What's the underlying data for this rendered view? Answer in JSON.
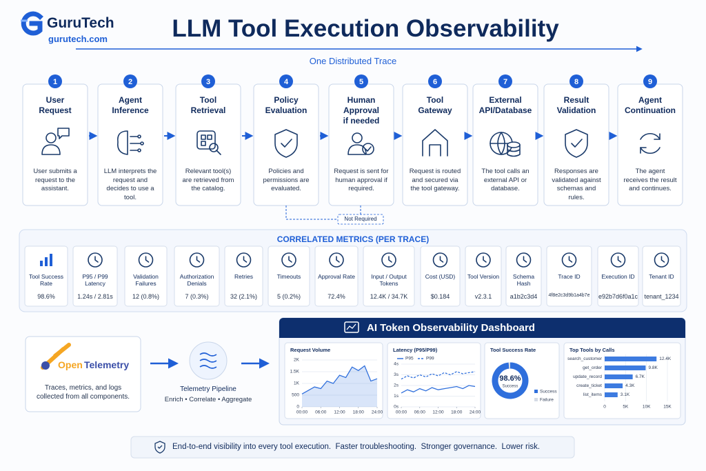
{
  "brand": {
    "name": "GuruTech",
    "url": "gurutech.com"
  },
  "title": "LLM Tool Execution Observability",
  "trace_label": "One Distributed Trace",
  "steps": [
    {
      "number": 1,
      "title": "User\nRequest",
      "description": "User submits a request to the assistant."
    },
    {
      "number": 2,
      "title": "Agent\nInference",
      "description": "LLM interprets the request and decides to use a tool."
    },
    {
      "number": 3,
      "title": "Tool\nRetrieval",
      "description": "Relevant tool(s) are retrieved from the catalog."
    },
    {
      "number": 4,
      "title": "Policy\nEvaluation",
      "description": "Policies and permissions are evaluated."
    },
    {
      "number": 5,
      "title": "Human Approval\nif needed",
      "description": "Request is sent for human approval if required."
    },
    {
      "number": 6,
      "title": "Tool\nGateway",
      "description": "Request is routed and secured via the tool gateway."
    },
    {
      "number": 7,
      "title": "External\nAPI/Database",
      "description": "The tool calls an external API or database."
    },
    {
      "number": 8,
      "title": "Result\nValidation",
      "description": "Responses are validated against schemas and rules."
    },
    {
      "number": 9,
      "title": "Agent\nContinuation",
      "description": "The agent receives the result and continues."
    }
  ],
  "not_required": "Not Required",
  "metrics": {
    "title": "CORRELATED METRICS (PER TRACE)",
    "items": [
      {
        "label": "Tool Success Rate",
        "value": "98.6%"
      },
      {
        "label": "P95 / P99 Latency",
        "value": "1.24s / 2.81s"
      },
      {
        "label": "Validation Failures",
        "value": "12 (0.8%)"
      },
      {
        "label": "Authorization Denials",
        "value": "7 (0.3%)"
      },
      {
        "label": "Retries",
        "value": "32 (2.1%)"
      },
      {
        "label": "Timeouts",
        "value": "5 (0.2%)"
      },
      {
        "label": "Approval Rate",
        "value": "72.4%"
      },
      {
        "label": "Input / Output Tokens",
        "value": "12.4K / 34.7K"
      },
      {
        "label": "Cost (USD)",
        "value": "$0.184"
      },
      {
        "label": "Tool Version",
        "value": "v2.3.1"
      },
      {
        "label": "Schema Hash",
        "value": "a1b2c3d4"
      },
      {
        "label": "Trace ID",
        "value": "4f8e2c3d9b1a4b7e"
      },
      {
        "label": "Execution ID",
        "value": "e92b7d6f0a1c"
      },
      {
        "label": "Tenant ID",
        "value": "tenant_1234"
      }
    ]
  },
  "otel": {
    "logo": [
      "Open",
      "Telemetry"
    ],
    "caption": "Traces, metrics, and logs collected from all components."
  },
  "pipeline": {
    "title": "Telemetry Pipeline",
    "subtitle": "Enrich • Correlate • Aggregate"
  },
  "dashboard": {
    "title": "AI Token Observability Dashboard",
    "charts": [
      {
        "type": "area",
        "title": "Request Volume",
        "color": "#2f6fdc",
        "x": [
          0,
          2,
          4,
          6,
          8,
          10,
          12,
          14,
          16,
          18,
          20,
          22,
          24
        ],
        "values": [
          550,
          700,
          850,
          780,
          1100,
          1000,
          1350,
          1250,
          1700,
          1550,
          1750,
          1100,
          1200
        ],
        "xlim": [
          0,
          24
        ],
        "ylim": [
          0,
          2000
        ],
        "xticks": [
          {
            "value": 0,
            "label": "00:00"
          },
          {
            "value": 6,
            "label": "06:00"
          },
          {
            "value": 12,
            "label": "12:00"
          },
          {
            "value": 18,
            "label": "18:00"
          },
          {
            "value": 24,
            "label": "24:00"
          }
        ],
        "yticks": [
          0,
          500,
          {
            "value": 1000,
            "label": "1K"
          },
          {
            "value": 1500,
            "label": "1.5K"
          },
          {
            "value": 2000,
            "label": "2K"
          }
        ],
        "grid": true
      },
      {
        "type": "line",
        "title": "Latency (P95/P99)",
        "x": [
          0,
          2,
          4,
          6,
          8,
          10,
          12,
          14,
          16,
          18,
          20,
          22,
          24
        ],
        "series": [
          {
            "name": "P95",
            "color": "#2f6fdc",
            "style": "solid",
            "values": [
              1.3,
              1.6,
              1.4,
              1.7,
              1.5,
              1.8,
              1.6,
              1.7,
              1.8,
              1.9,
              1.7,
              2.0,
              1.9
            ]
          },
          {
            "name": "P99",
            "color": "#2f6fdc",
            "style": "dashed",
            "values": [
              2.6,
              2.9,
              2.7,
              3.0,
              2.8,
              3.1,
              2.9,
              3.2,
              3.0,
              3.3,
              3.1,
              3.2,
              3.3
            ]
          }
        ],
        "xlim": [
          0,
          24
        ],
        "ylim": [
          0,
          4
        ],
        "xticks": [
          {
            "value": 0,
            "label": "00:00"
          },
          {
            "value": 6,
            "label": "06:00"
          },
          {
            "value": 12,
            "label": "12:00"
          },
          {
            "value": 18,
            "label": "18:00"
          },
          {
            "value": 24,
            "label": "24:00"
          }
        ],
        "yticks": [
          {
            "value": 0,
            "label": "0s"
          },
          {
            "value": 1,
            "label": "1s"
          },
          {
            "value": 2,
            "label": "2s"
          },
          {
            "value": 3,
            "label": "3s"
          },
          {
            "value": 4,
            "label": "4s"
          }
        ],
        "grid": true
      },
      {
        "type": "donut",
        "title": "Tool Success Rate",
        "categories": [
          "Success",
          "Failure"
        ],
        "values": [
          98.6,
          1.4
        ],
        "value_labels": [
          "98.6%",
          null
        ],
        "colors": [
          "#2f6fdc",
          "#d5dbe5"
        ]
      },
      {
        "type": "bar",
        "orientation": "horizontal",
        "title": "Top Tools by Calls",
        "color": "#3d7be0",
        "categories": [
          "search_customer",
          "get_order",
          "update_record",
          "create_ticket",
          "list_items"
        ],
        "values": [
          12400,
          9800,
          6700,
          4300,
          3100
        ],
        "value_labels": [
          "12.4K",
          "9.8K",
          "6.7K",
          "4.3K",
          "3.1K"
        ],
        "xlim": [
          0,
          15000
        ],
        "xticks": [
          0,
          {
            "value": 5000,
            "label": "5K"
          },
          {
            "value": 10000,
            "label": "10K"
          },
          {
            "value": 15000,
            "label": "15K"
          }
        ],
        "grid": true
      }
    ]
  },
  "footer": "End-to-end visibility into every tool execution.  Faster troubleshooting.  Stronger governance.  Lower risk."
}
